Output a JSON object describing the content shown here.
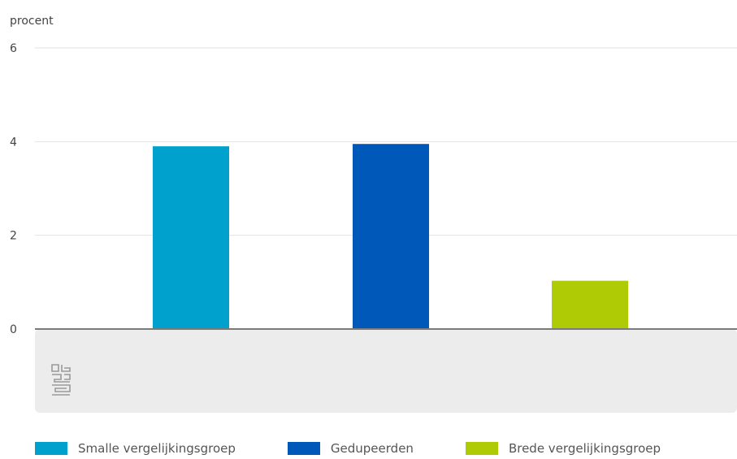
{
  "chart_data": {
    "type": "bar",
    "ylabel": "procent",
    "ylim": [
      0,
      6
    ],
    "yticks": [
      0,
      2,
      4,
      6
    ],
    "categories": [
      "Smalle vergelijkingsgroep",
      "Gedupeerden",
      "Brede vergelijkingsgroep"
    ],
    "values": [
      3.9,
      3.95,
      1.03
    ],
    "colors": [
      "#00a1cd",
      "#0058b8",
      "#afcb05"
    ],
    "grid": true,
    "legend_position": "bottom"
  },
  "logo": {
    "name": "cbs-logo-icon",
    "text": "cbs"
  }
}
